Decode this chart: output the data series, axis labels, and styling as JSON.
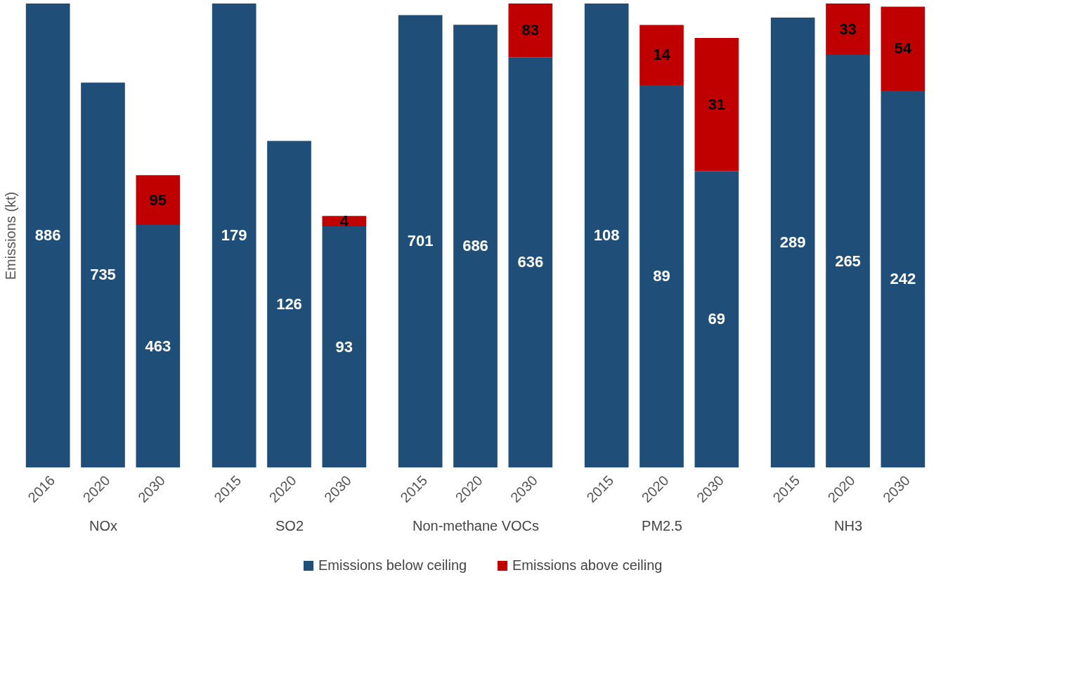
{
  "chart_data": [
    {
      "type": "bar",
      "stacked": true,
      "ylabel": "Emissions (kt)",
      "xlabel": "NOx",
      "categories": [
        "2016",
        "2020",
        "2030"
      ],
      "data_labels": true,
      "tick_labels": "x",
      "legend": "bottom",
      "series": [
        {
          "name": "Emissions below ceiling",
          "color": "#1f4e79",
          "values": [
            886,
            735,
            463
          ]
        },
        {
          "name": "Emissions above ceiling",
          "color": "#c00000",
          "values": [
            null,
            null,
            95
          ]
        }
      ]
    },
    {
      "type": "bar",
      "stacked": true,
      "xlabel": "SO2",
      "categories": [
        "2015",
        "2020",
        "2030"
      ],
      "data_labels": true,
      "tick_labels": "x",
      "series": [
        {
          "color": "#1f4e79",
          "values": [
            179,
            126,
            93
          ]
        },
        {
          "color": "#c00000",
          "values": [
            null,
            null,
            4
          ]
        }
      ]
    },
    {
      "type": "bar",
      "stacked": true,
      "xlabel": "Non-methane VOCs",
      "categories": [
        "2015",
        "2020",
        "2030"
      ],
      "data_labels": true,
      "tick_labels": "x",
      "series": [
        {
          "color": "#1f4e79",
          "values": [
            701,
            686,
            636
          ]
        },
        {
          "color": "#c00000",
          "values": [
            null,
            null,
            83
          ]
        }
      ]
    },
    {
      "type": "bar",
      "stacked": true,
      "xlabel": "PM2.5",
      "categories": [
        "2015",
        "2020",
        "2030"
      ],
      "data_labels": true,
      "tick_labels": "x",
      "series": [
        {
          "color": "#1f4e79",
          "values": [
            108,
            89,
            69
          ]
        },
        {
          "color": "#c00000",
          "values": [
            null,
            14,
            31
          ]
        }
      ]
    },
    {
      "type": "bar",
      "stacked": true,
      "xlabel": "NH3",
      "categories": [
        "2015",
        "2020",
        "2030"
      ],
      "data_labels": true,
      "tick_labels": "x",
      "series": [
        {
          "color": "#1f4e79",
          "values": [
            289,
            265,
            242
          ]
        },
        {
          "color": "#c00000",
          "values": [
            null,
            33,
            54
          ]
        }
      ]
    }
  ]
}
